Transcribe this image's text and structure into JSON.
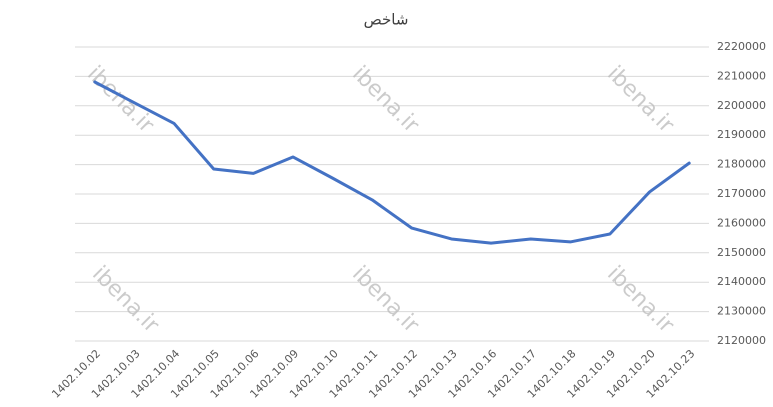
{
  "chart_data": {
    "type": "line",
    "title": "شاخص",
    "categories": [
      "1402.10.02",
      "1402.10.03",
      "1402.10.04",
      "1402.10.05",
      "1402.10.06",
      "1402.10.09",
      "1402.10.10",
      "1402.10.11",
      "1402.10.12",
      "1402.10.13",
      "1402.10.16",
      "1402.10.17",
      "1402.10.18",
      "1402.10.19",
      "1402.10.20",
      "1402.10.23"
    ],
    "values": [
      2208100,
      2201000,
      2194000,
      2178500,
      2177000,
      2182600,
      2175400,
      2168000,
      2158400,
      2154700,
      2153300,
      2154700,
      2153700,
      2156400,
      2170700,
      2180500
    ],
    "color": "#4472c4",
    "ylim": [
      2120000,
      2220000
    ],
    "yticks": [
      2120000,
      2130000,
      2140000,
      2150000,
      2160000,
      2170000,
      2180000,
      2190000,
      2200000,
      2210000,
      2220000
    ],
    "grid": true,
    "watermark": "ibena.ir"
  }
}
